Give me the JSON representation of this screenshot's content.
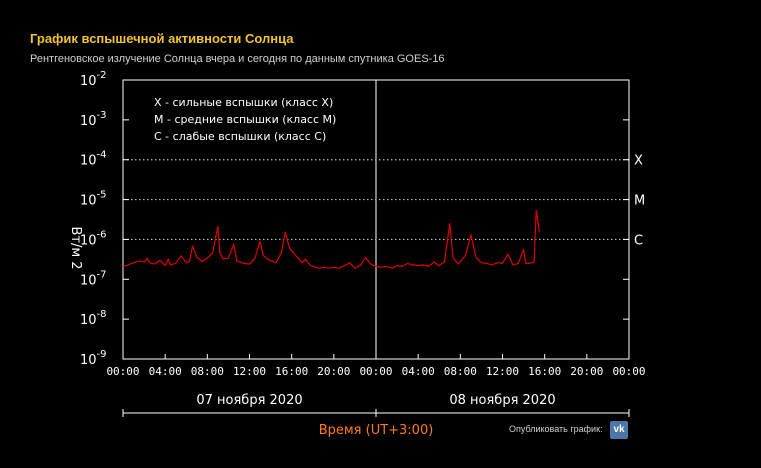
{
  "header": {
    "title": "График вспышечной активности Солнца",
    "subtitle": "Рентгеновское излучение Солнца вчера и сегодня по данным спутника GOES-16"
  },
  "share": {
    "label": "Опубликовать график:",
    "icon": "vk-icon"
  },
  "colors": {
    "title": "#f2c22f",
    "series": "#e00000",
    "time_label": "#ff7a1a"
  },
  "chart_data": {
    "type": "line",
    "title": "",
    "ylabel": "Вт/м 2",
    "xlabel": "Время (UT+3:00)",
    "y_scale": "log",
    "ylim": [
      1e-09,
      0.01
    ],
    "y_ticks": [
      {
        "base": "10",
        "exp": "-2",
        "value": 0.01
      },
      {
        "base": "10",
        "exp": "-3",
        "value": 0.001
      },
      {
        "base": "10",
        "exp": "-4",
        "value": 0.0001
      },
      {
        "base": "10",
        "exp": "-5",
        "value": 1e-05
      },
      {
        "base": "10",
        "exp": "-6",
        "value": 1e-06
      },
      {
        "base": "10",
        "exp": "-7",
        "value": 1e-07
      },
      {
        "base": "10",
        "exp": "-8",
        "value": 1e-08
      },
      {
        "base": "10",
        "exp": "-9",
        "value": 1e-09
      }
    ],
    "xlim_hours": [
      0,
      48
    ],
    "x_tick_labels": [
      "00:00",
      "04:00",
      "08:00",
      "12:00",
      "16:00",
      "20:00",
      "00:00",
      "04:00",
      "08:00",
      "12:00",
      "16:00",
      "20:00",
      "00:00"
    ],
    "day_labels": [
      "07 ноября 2020",
      "08 ноября 2020"
    ],
    "grid": "dotted lines at class thresholds",
    "class_levels": [
      {
        "label": "X",
        "value": 0.0001
      },
      {
        "label": "M",
        "value": 1e-05
      },
      {
        "label": "C",
        "value": 1e-06
      }
    ],
    "legend": [
      "X - сильные вспышки (класс X)",
      "M - средние вспышки (класс M)",
      "C - слабые вспышки (класс C)"
    ],
    "legend_position": "top-left",
    "series": [
      {
        "values_hours": [
          0,
          0.5,
          1,
          1.5,
          2,
          2.3,
          2.5,
          3,
          3.5,
          4,
          4.3,
          4.5,
          5,
          5.5,
          6,
          6.3,
          6.6,
          7,
          7.5,
          8,
          8.5,
          9.0,
          9.2,
          9.5,
          10,
          10.5,
          10.8,
          11.5,
          12,
          12.5,
          13,
          13.3,
          13.8,
          14.5,
          15,
          15.4,
          15.8,
          16.5,
          17,
          17.3,
          17.8,
          18.5,
          19,
          19.5,
          20,
          20.5,
          21,
          21.5,
          22,
          22.5,
          23,
          23.5,
          24,
          24.5,
          25,
          25.5,
          26,
          26.5,
          27,
          27.5,
          28,
          28.5,
          29,
          29.5,
          30,
          30.5,
          31,
          31.3,
          31.8,
          32.5,
          33,
          33.5,
          34,
          34.5,
          35,
          35.5,
          36,
          36.5,
          37,
          37.5,
          38,
          38.2,
          38.5,
          39,
          39.2,
          39.5
        ],
        "values_flux": [
          2.1e-07,
          2.3e-07,
          2.6e-07,
          2.9e-07,
          2.7e-07,
          3.4e-07,
          2.6e-07,
          2.4e-07,
          3e-07,
          2.2e-07,
          3.2e-07,
          2.3e-07,
          2.5e-07,
          3.9e-07,
          2.6e-07,
          2.8e-07,
          6.8e-07,
          3.6e-07,
          2.8e-07,
          3.4e-07,
          4.6e-07,
          2.1e-06,
          4.5e-07,
          3.3e-07,
          3.4e-07,
          7.5e-07,
          2.9e-07,
          2.5e-07,
          2.4e-07,
          3.3e-07,
          9e-07,
          4e-07,
          3.1e-07,
          2.6e-07,
          4.5e-07,
          1.5e-06,
          6e-07,
          3.7e-07,
          2.6e-07,
          3.2e-07,
          2.2e-07,
          1.9e-07,
          2e-07,
          1.9e-07,
          2e-07,
          1.9e-07,
          2.2e-07,
          2.6e-07,
          1.9e-07,
          2.2e-07,
          3.5e-07,
          2.4e-07,
          2.1e-07,
          2e-07,
          2.1e-07,
          1.9e-07,
          2.2e-07,
          2.1e-07,
          2.5e-07,
          2.3e-07,
          2.2e-07,
          2.3e-07,
          2.1e-07,
          2.7e-07,
          2.2e-07,
          2.8e-07,
          2.5e-06,
          3.5e-07,
          2.4e-07,
          4e-07,
          1.3e-06,
          3.5e-07,
          2.6e-07,
          2.5e-07,
          2.3e-07,
          2.6e-07,
          2.5e-07,
          4.3e-07,
          2.3e-07,
          2.5e-07,
          5.6e-07,
          2.5e-07,
          2.5e-07,
          2.7e-07,
          5.4e-06,
          1.5e-06
        ]
      }
    ]
  }
}
